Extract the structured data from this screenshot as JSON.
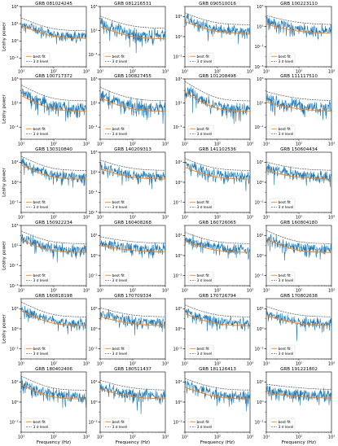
{
  "figure": {
    "ylabel": "Leahy power",
    "xlabel": "Frequency (Hz)",
    "legend_fit": "best fit",
    "legend_sigma": "3 σ level"
  },
  "colors": {
    "data": "#1f77b4",
    "fit": "#ff7f0e",
    "sigma": "#555555"
  },
  "chart_data": [
    {
      "type": "line",
      "title": "GRB 081024245",
      "x_scale": "log",
      "y_scale": "log",
      "xlim": [
        10,
        1000
      ],
      "ylim": [
        0.001,
        10000.0
      ],
      "xticks": [
        "10¹",
        "10²",
        "10³"
      ],
      "yticks": [
        "10⁻²",
        "10⁰",
        "10²",
        "10⁴"
      ],
      "series": [
        {
          "name": "best fit",
          "kind": "power-law+const",
          "amp": 60,
          "index": 1.6,
          "floor": 2
        },
        {
          "name": "3 σ level",
          "kind": "threshold"
        }
      ]
    },
    {
      "type": "line",
      "title": "GRB 081216531",
      "x_scale": "log",
      "y_scale": "log",
      "xlim": [
        10,
        1000
      ],
      "ylim": [
        0.01,
        1000.0
      ],
      "xticks": [
        "10¹",
        "10²",
        "10³"
      ],
      "yticks": [
        "10⁻¹",
        "10¹",
        "10³"
      ],
      "series": [
        {
          "name": "best fit",
          "kind": "power-law+const",
          "amp": 20,
          "index": 1.2,
          "floor": 2
        },
        {
          "name": "3 σ level",
          "kind": "threshold"
        }
      ]
    },
    {
      "type": "line",
      "title": "GRB 090510016",
      "x_scale": "log",
      "y_scale": "log",
      "xlim": [
        10,
        1000
      ],
      "ylim": [
        0.001,
        1000.0
      ],
      "xticks": [
        "10¹",
        "10²",
        "10³"
      ],
      "yticks": [
        "10⁻²",
        "10⁰",
        "10²"
      ],
      "series": [
        {
          "name": "best fit",
          "kind": "power-law+const",
          "amp": 30,
          "index": 1.4,
          "floor": 2
        },
        {
          "name": "3 σ level",
          "kind": "threshold"
        }
      ]
    },
    {
      "type": "line",
      "title": "GRB 100223110",
      "x_scale": "log",
      "y_scale": "log",
      "xlim": [
        10,
        1000
      ],
      "ylim": [
        0.001,
        1000.0
      ],
      "xticks": [
        "10¹",
        "10²",
        "10³"
      ],
      "yticks": [
        "10⁻³",
        "10⁻¹",
        "10¹",
        "10³"
      ],
      "series": [
        {
          "name": "best fit",
          "kind": "power-law+const",
          "amp": 15,
          "index": 1.0,
          "floor": 2
        },
        {
          "name": "3 σ level",
          "kind": "threshold"
        }
      ]
    },
    {
      "type": "line",
      "title": "GRB 100717372",
      "x_scale": "log",
      "y_scale": "log",
      "xlim": [
        10,
        1000
      ],
      "ylim": [
        0.01,
        1000.0
      ],
      "xticks": [
        "10¹",
        "10²",
        "10³"
      ],
      "yticks": [
        "10⁻¹",
        "10¹",
        "10³"
      ],
      "series": [
        {
          "name": "best fit",
          "kind": "power-law+const",
          "amp": 40,
          "index": 1.5,
          "floor": 2
        },
        {
          "name": "3 σ level",
          "kind": "threshold"
        }
      ]
    },
    {
      "type": "line",
      "title": "GRB 100827455",
      "x_scale": "log",
      "y_scale": "log",
      "xlim": [
        10,
        1000
      ],
      "ylim": [
        0.01,
        1000.0
      ],
      "xticks": [
        "10¹",
        "10²",
        "10³"
      ],
      "yticks": [
        "10⁻¹",
        "10¹",
        "10³"
      ],
      "series": [
        {
          "name": "best fit",
          "kind": "power-law+const",
          "amp": 25,
          "index": 1.3,
          "floor": 2
        },
        {
          "name": "3 σ level",
          "kind": "threshold"
        }
      ]
    },
    {
      "type": "line",
      "title": "GRB 101208498",
      "x_scale": "log",
      "y_scale": "log",
      "xlim": [
        10,
        1000
      ],
      "ylim": [
        0.01,
        1000.0
      ],
      "xticks": [
        "10¹",
        "10²",
        "10³"
      ],
      "yticks": [
        "10⁻¹",
        "10¹",
        "10³"
      ],
      "series": [
        {
          "name": "best fit",
          "kind": "power-law+const",
          "amp": 80,
          "index": 1.7,
          "floor": 2
        },
        {
          "name": "3 σ level",
          "kind": "threshold"
        }
      ]
    },
    {
      "type": "line",
      "title": "GRB 111117510",
      "x_scale": "log",
      "y_scale": "log",
      "xlim": [
        10,
        1000
      ],
      "ylim": [
        0.01,
        1000.0
      ],
      "xticks": [
        "10¹",
        "10²",
        "10³"
      ],
      "yticks": [
        "10⁻¹",
        "10¹",
        "10³"
      ],
      "series": [
        {
          "name": "best fit",
          "kind": "power-law+const",
          "amp": 10,
          "index": 0.9,
          "floor": 2
        },
        {
          "name": "3 σ level",
          "kind": "threshold"
        }
      ]
    },
    {
      "type": "line",
      "title": "GRB 130310840",
      "x_scale": "log",
      "y_scale": "log",
      "xlim": [
        10,
        1000
      ],
      "ylim": [
        0.001,
        1000.0
      ],
      "xticks": [
        "10¹",
        "10²",
        "10³"
      ],
      "yticks": [
        "10⁻²",
        "10⁰",
        "10²"
      ],
      "series": [
        {
          "name": "best fit",
          "kind": "power-law+const",
          "amp": 50,
          "index": 1.6,
          "floor": 2
        },
        {
          "name": "3 σ level",
          "kind": "threshold"
        }
      ]
    },
    {
      "type": "line",
      "title": "GRB 140209313",
      "x_scale": "log",
      "y_scale": "log",
      "xlim": [
        10,
        1000
      ],
      "ylim": [
        0.001,
        1000.0
      ],
      "xticks": [
        "10¹",
        "10²",
        "10³"
      ],
      "yticks": [
        "10⁻³",
        "10⁻¹",
        "10¹",
        "10³"
      ],
      "series": [
        {
          "name": "best fit",
          "kind": "power-law+const",
          "amp": 20,
          "index": 1.2,
          "floor": 2
        },
        {
          "name": "3 σ level",
          "kind": "threshold"
        }
      ]
    },
    {
      "type": "line",
      "title": "GRB 141102536",
      "x_scale": "log",
      "y_scale": "log",
      "xlim": [
        10,
        1000
      ],
      "ylim": [
        0.001,
        1000.0
      ],
      "xticks": [
        "10¹",
        "10²",
        "10³"
      ],
      "yticks": [
        "10⁻²",
        "10⁰",
        "10²"
      ],
      "series": [
        {
          "name": "best fit",
          "kind": "power-law+const",
          "amp": 30,
          "index": 1.4,
          "floor": 2
        },
        {
          "name": "3 σ level",
          "kind": "threshold"
        }
      ]
    },
    {
      "type": "line",
      "title": "GRB 150604434",
      "x_scale": "log",
      "y_scale": "log",
      "xlim": [
        10,
        1000
      ],
      "ylim": [
        0.001,
        1000.0
      ],
      "xticks": [
        "10¹",
        "10²",
        "10³"
      ],
      "yticks": [
        "10⁻²",
        "10⁰",
        "10²"
      ],
      "series": [
        {
          "name": "best fit",
          "kind": "power-law+const",
          "amp": 12,
          "index": 1.0,
          "floor": 2
        },
        {
          "name": "3 σ level",
          "kind": "threshold"
        }
      ]
    },
    {
      "type": "line",
      "title": "GRB 150922234",
      "x_scale": "log",
      "y_scale": "log",
      "xlim": [
        10,
        1000
      ],
      "ylim": [
        0.001,
        1000.0
      ],
      "xticks": [
        "10¹",
        "10²",
        "10³"
      ],
      "yticks": [
        "10⁻³",
        "10⁻¹",
        "10¹",
        "10³"
      ],
      "series": [
        {
          "name": "best fit",
          "kind": "power-law+const",
          "amp": 35,
          "index": 1.5,
          "floor": 2
        },
        {
          "name": "3 σ level",
          "kind": "threshold"
        }
      ]
    },
    {
      "type": "line",
      "title": "GRB 160408268",
      "x_scale": "log",
      "y_scale": "log",
      "xlim": [
        10,
        1000
      ],
      "ylim": [
        0.001,
        1000.0
      ],
      "xticks": [
        "10¹",
        "10²",
        "10³"
      ],
      "yticks": [
        "10⁻²",
        "10⁰",
        "10²"
      ],
      "series": [
        {
          "name": "best fit",
          "kind": "power-law+const",
          "amp": 8,
          "index": 0.8,
          "floor": 2
        },
        {
          "name": "3 σ level",
          "kind": "threshold"
        }
      ]
    },
    {
      "type": "line",
      "title": "GRB 160726065",
      "x_scale": "log",
      "y_scale": "log",
      "xlim": [
        10,
        1000
      ],
      "ylim": [
        0.001,
        1000.0
      ],
      "xticks": [
        "10¹",
        "10²",
        "10³"
      ],
      "yticks": [
        "10⁻²",
        "10⁰",
        "10²"
      ],
      "series": [
        {
          "name": "best fit",
          "kind": "power-law+const",
          "amp": 25,
          "index": 1.3,
          "floor": 2
        },
        {
          "name": "3 σ level",
          "kind": "threshold"
        }
      ]
    },
    {
      "type": "line",
      "title": "GRB 160804180",
      "x_scale": "log",
      "y_scale": "log",
      "xlim": [
        10,
        1000
      ],
      "ylim": [
        0.001,
        1000.0
      ],
      "xticks": [
        "10¹",
        "10²",
        "10³"
      ],
      "yticks": [
        "10⁻²",
        "10⁰",
        "10²"
      ],
      "series": [
        {
          "name": "best fit",
          "kind": "power-law+const",
          "amp": 40,
          "index": 1.5,
          "floor": 2
        },
        {
          "name": "3 σ level",
          "kind": "threshold"
        }
      ]
    },
    {
      "type": "line",
      "title": "GRB 160818198",
      "x_scale": "log",
      "y_scale": "log",
      "xlim": [
        10,
        1000
      ],
      "ylim": [
        0.001,
        1000.0
      ],
      "xticks": [
        "10¹",
        "10²",
        "10³"
      ],
      "yticks": [
        "10⁻²",
        "10⁰",
        "10²"
      ],
      "series": [
        {
          "name": "best fit",
          "kind": "power-law+const",
          "amp": 60,
          "index": 1.6,
          "floor": 2
        },
        {
          "name": "3 σ level",
          "kind": "threshold"
        }
      ]
    },
    {
      "type": "line",
      "title": "GRB 170709334",
      "x_scale": "log",
      "y_scale": "log",
      "xlim": [
        10,
        1000
      ],
      "ylim": [
        0.001,
        1000.0
      ],
      "xticks": [
        "10¹",
        "10²",
        "10³"
      ],
      "yticks": [
        "10⁻²",
        "10⁰",
        "10²"
      ],
      "series": [
        {
          "name": "best fit",
          "kind": "power-law+const",
          "amp": 15,
          "index": 1.1,
          "floor": 2
        },
        {
          "name": "3 σ level",
          "kind": "threshold"
        }
      ]
    },
    {
      "type": "line",
      "title": "GRB 170726794",
      "x_scale": "log",
      "y_scale": "log",
      "xlim": [
        10,
        1000
      ],
      "ylim": [
        0.001,
        1000.0
      ],
      "xticks": [
        "10¹",
        "10²",
        "10³"
      ],
      "yticks": [
        "10⁻²",
        "10⁰",
        "10²"
      ],
      "series": [
        {
          "name": "best fit",
          "kind": "power-law+const",
          "amp": 30,
          "index": 1.4,
          "floor": 2
        },
        {
          "name": "3 σ level",
          "kind": "threshold"
        }
      ]
    },
    {
      "type": "line",
      "title": "GRB 170802638",
      "x_scale": "log",
      "y_scale": "log",
      "xlim": [
        10,
        1000
      ],
      "ylim": [
        0.001,
        1000.0
      ],
      "xticks": [
        "10¹",
        "10²",
        "10³"
      ],
      "yticks": [
        "10⁻²",
        "10⁰",
        "10²"
      ],
      "series": [
        {
          "name": "best fit",
          "kind": "power-law+const",
          "amp": 20,
          "index": 1.2,
          "floor": 2
        },
        {
          "name": "3 σ level",
          "kind": "threshold"
        }
      ]
    },
    {
      "type": "line",
      "title": "GRB 180402406",
      "x_scale": "log",
      "y_scale": "log",
      "xlim": [
        10,
        1000
      ],
      "ylim": [
        0.001,
        1000.0
      ],
      "xticks": [
        "10¹",
        "10²",
        "10³"
      ],
      "yticks": [
        "10⁻²",
        "10⁰",
        "10²"
      ],
      "series": [
        {
          "name": "best fit",
          "kind": "power-law+const",
          "amp": 50,
          "index": 1.6,
          "floor": 2
        },
        {
          "name": "3 σ level",
          "kind": "threshold"
        }
      ]
    },
    {
      "type": "line",
      "title": "GRB 180511437",
      "x_scale": "log",
      "y_scale": "log",
      "xlim": [
        10,
        1000
      ],
      "ylim": [
        0.001,
        1000.0
      ],
      "xticks": [
        "10¹",
        "10²",
        "10³"
      ],
      "yticks": [
        "10⁻²",
        "10⁰",
        "10²"
      ],
      "series": [
        {
          "name": "best fit",
          "kind": "power-law+const",
          "amp": 18,
          "index": 1.1,
          "floor": 2
        },
        {
          "name": "3 σ level",
          "kind": "threshold"
        }
      ]
    },
    {
      "type": "line",
      "title": "GRB 181126413",
      "x_scale": "log",
      "y_scale": "log",
      "xlim": [
        10,
        1000
      ],
      "ylim": [
        0.001,
        1000.0
      ],
      "xticks": [
        "10¹",
        "10²",
        "10³"
      ],
      "yticks": [
        "10⁻²",
        "10⁰",
        "10²"
      ],
      "series": [
        {
          "name": "best fit",
          "kind": "power-law+const",
          "amp": 28,
          "index": 1.3,
          "floor": 2
        },
        {
          "name": "3 σ level",
          "kind": "threshold"
        }
      ]
    },
    {
      "type": "line",
      "title": "GRB 191221802",
      "x_scale": "log",
      "y_scale": "log",
      "xlim": [
        10,
        1000
      ],
      "ylim": [
        0.001,
        1000.0
      ],
      "xticks": [
        "10¹",
        "10²",
        "10³"
      ],
      "yticks": [
        "10⁻²",
        "10⁰",
        "10²"
      ],
      "series": [
        {
          "name": "best fit",
          "kind": "power-law+const",
          "amp": 6,
          "index": 0.6,
          "floor": 2
        },
        {
          "name": "3 σ level",
          "kind": "threshold"
        }
      ]
    }
  ]
}
